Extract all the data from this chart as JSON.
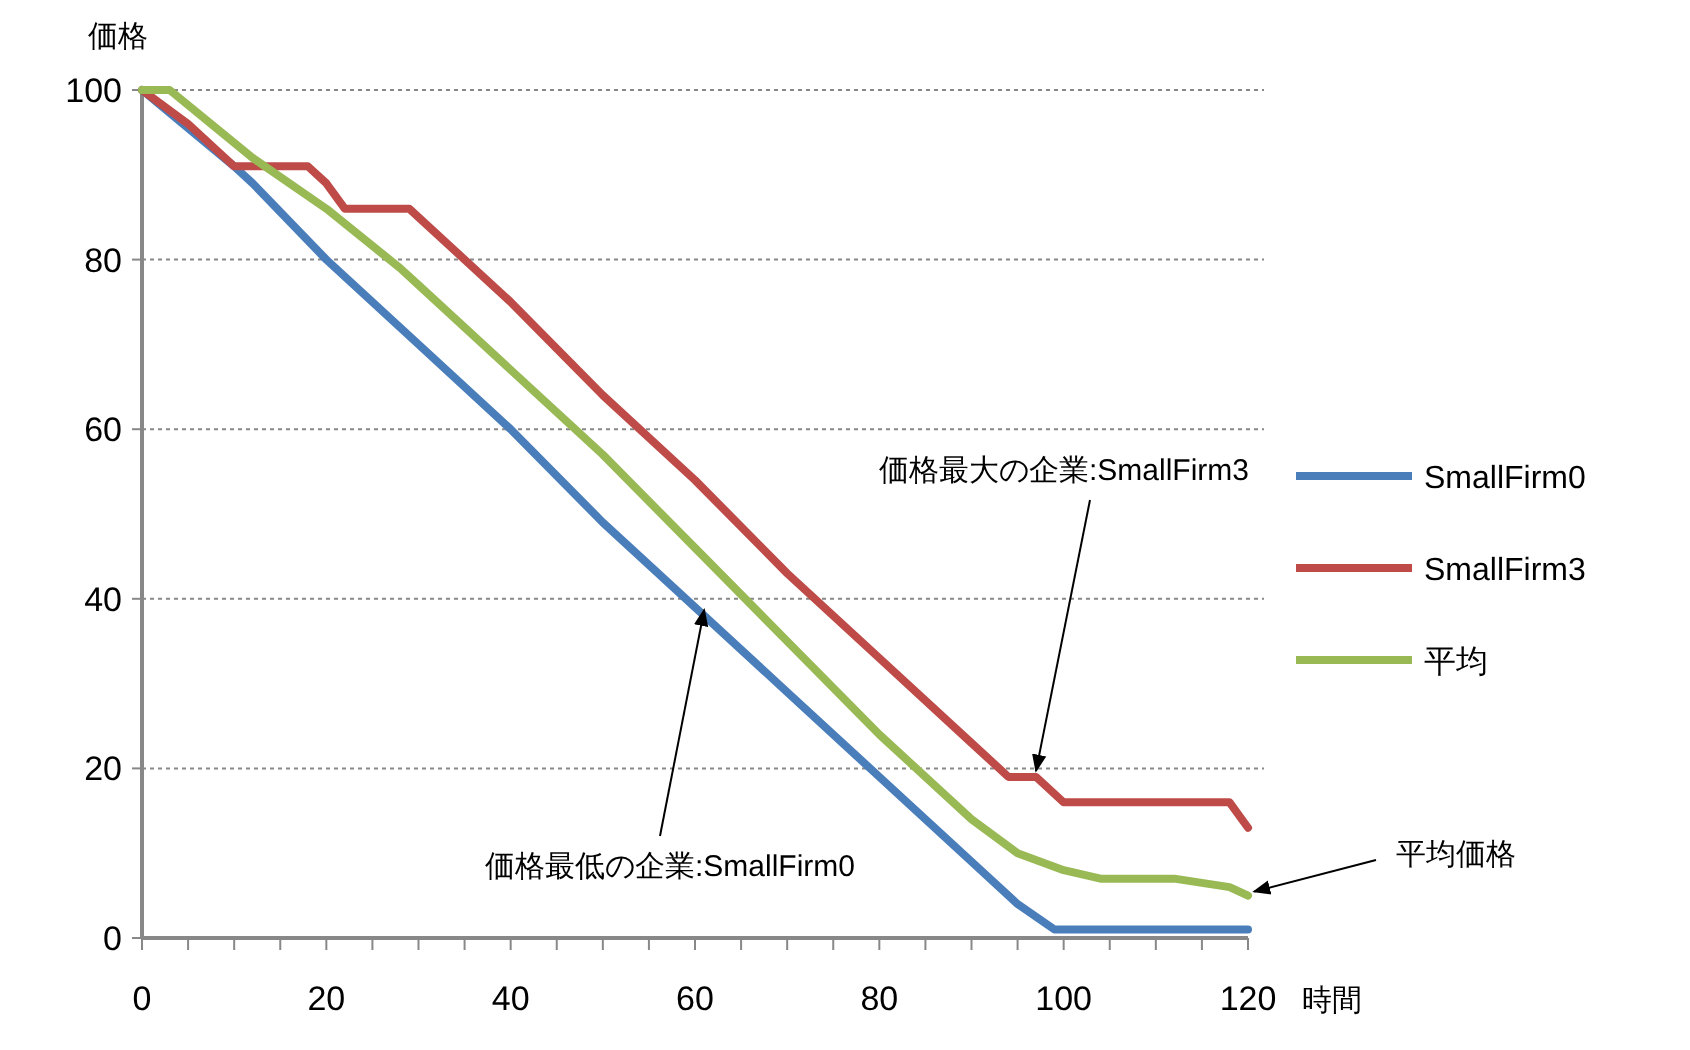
{
  "chart_data": {
    "type": "line",
    "xlabel": "時間",
    "ylabel": "価格",
    "xlim": [
      0,
      120
    ],
    "ylim": [
      0,
      100
    ],
    "xticks": [
      0,
      {
        "value": 5,
        "label": null
      },
      {
        "value": 10,
        "label": null
      },
      {
        "value": 15,
        "label": null
      },
      20,
      {
        "value": 25,
        "label": null
      },
      {
        "value": 30,
        "label": null
      },
      {
        "value": 35,
        "label": null
      },
      40,
      {
        "value": 45,
        "label": null
      },
      {
        "value": 50,
        "label": null
      },
      {
        "value": 55,
        "label": null
      },
      60,
      {
        "value": 65,
        "label": null
      },
      {
        "value": 70,
        "label": null
      },
      {
        "value": 75,
        "label": null
      },
      80,
      {
        "value": 85,
        "label": null
      },
      {
        "value": 90,
        "label": null
      },
      {
        "value": 95,
        "label": null
      },
      100,
      {
        "value": 105,
        "label": null
      },
      {
        "value": 110,
        "label": null
      },
      {
        "value": 115,
        "label": null
      },
      120
    ],
    "yticks": [
      0,
      20,
      40,
      60,
      80,
      100
    ],
    "grid": "y",
    "legend": "right",
    "series": [
      {
        "name": "SmallFirm0",
        "color": "#4a7ebb",
        "x": [
          0,
          10,
          12,
          20,
          30,
          40,
          50,
          60,
          70,
          80,
          90,
          95,
          99,
          120
        ],
        "values": [
          100,
          91,
          89,
          80,
          70,
          60,
          49,
          39,
          29,
          19,
          9,
          4,
          1,
          1
        ]
      },
      {
        "name": "SmallFirm3",
        "color": "#be4b48",
        "x": [
          0,
          5,
          10,
          18,
          20,
          22,
          29,
          30,
          40,
          50,
          60,
          70,
          80,
          90,
          94,
          97,
          100,
          118,
          120
        ],
        "values": [
          100,
          96,
          91,
          91,
          89,
          86,
          86,
          85,
          75,
          64,
          54,
          43,
          33,
          23,
          19,
          19,
          16,
          16,
          13
        ]
      },
      {
        "name": "平均",
        "color": "#98b954",
        "x": [
          0,
          3,
          12,
          20,
          28,
          30,
          40,
          50,
          60,
          70,
          80,
          90,
          95,
          100,
          104,
          112,
          118,
          120
        ],
        "values": [
          100,
          100,
          92,
          86,
          79,
          77,
          67,
          57,
          46,
          35,
          24,
          14,
          10,
          8,
          7,
          7,
          6,
          5
        ]
      }
    ],
    "annotations": [
      {
        "text": "価格最大の企業:SmallFirm3",
        "x": 97,
        "y": 19
      },
      {
        "text": "価格最低の企業:SmallFirm0",
        "x": 61,
        "y": 38
      },
      {
        "text": "平均価格",
        "x": 120,
        "y": 5
      }
    ]
  }
}
